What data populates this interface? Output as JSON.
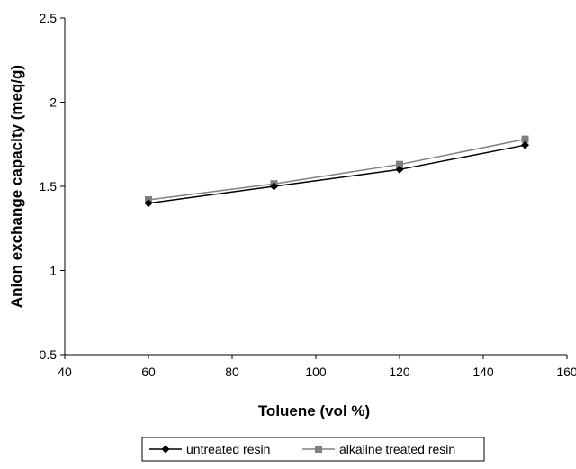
{
  "chart_data": {
    "type": "line",
    "title": "",
    "xlabel": "Toluene (vol %)",
    "ylabel": "Anion exchange capacity (meq/g)",
    "xlim": [
      40,
      160
    ],
    "ylim": [
      0.5,
      2.5
    ],
    "xticks": [
      40,
      60,
      80,
      100,
      120,
      140,
      160
    ],
    "yticks": [
      0.5,
      1,
      1.5,
      2,
      2.5
    ],
    "ytick_labels": [
      "0.5",
      "1",
      "1.5",
      "2",
      "2.5"
    ],
    "x": [
      60,
      90,
      120,
      150
    ],
    "series": [
      {
        "name": "untreated resin",
        "values": [
          1.4,
          1.5,
          1.6,
          1.745
        ],
        "color": "#000000",
        "marker": "diamond"
      },
      {
        "name": "alkaline treated resin",
        "values": [
          1.42,
          1.515,
          1.63,
          1.78
        ],
        "color": "#808080",
        "marker": "square"
      }
    ],
    "grid": false,
    "legend_position": "bottom"
  }
}
